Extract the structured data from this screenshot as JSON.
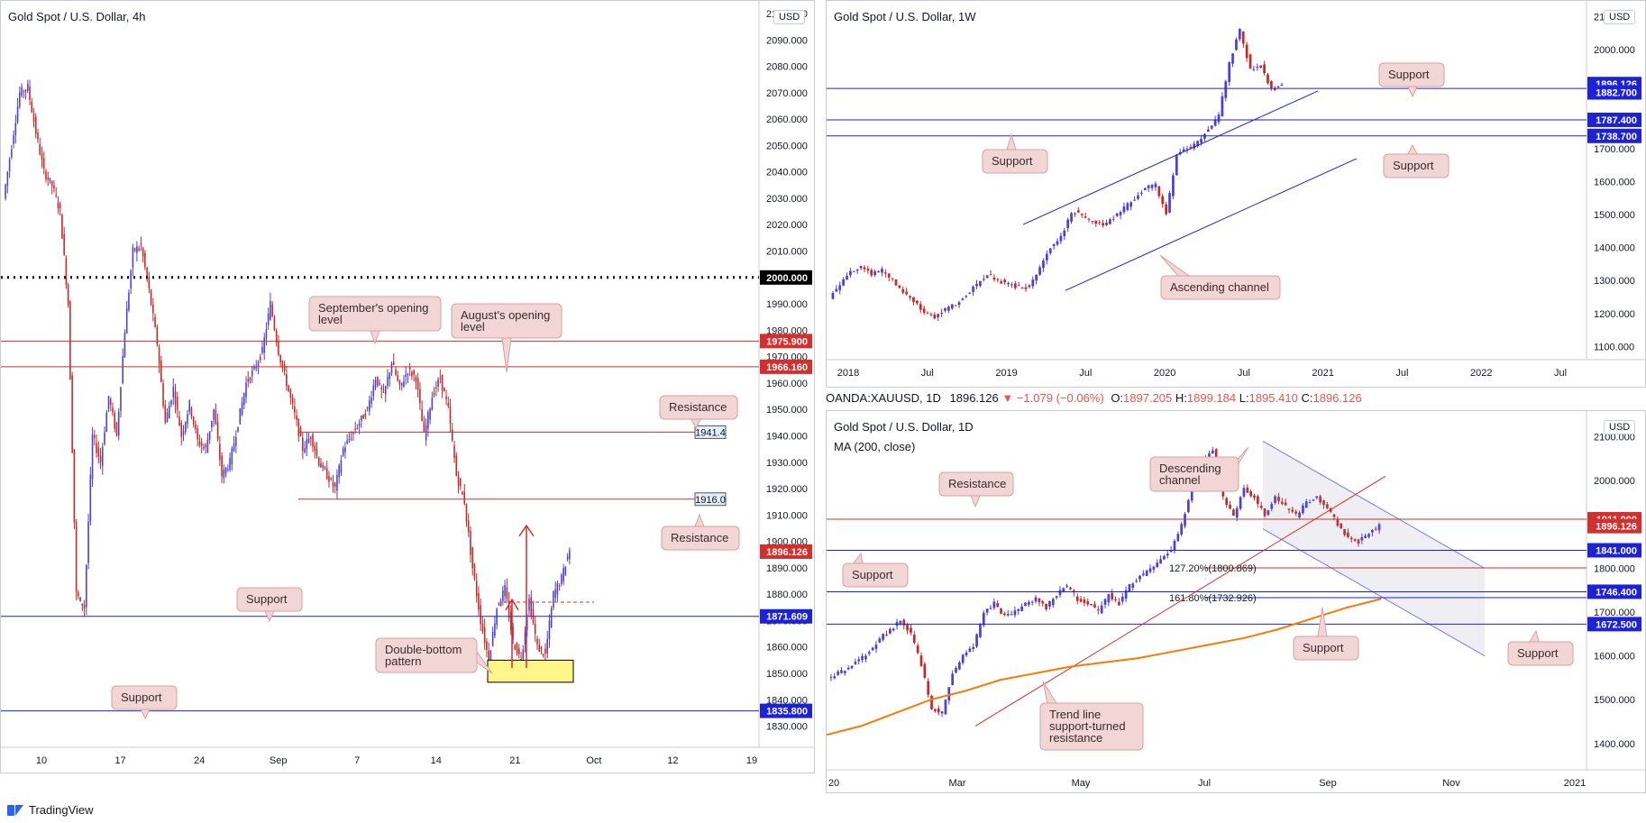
{
  "footer": {
    "brand": "TradingView"
  },
  "ohlc_bar": {
    "symbol": "OANDA:XAUUSD, 1D",
    "last": "1896.126",
    "change": "▼ −1.079 (−0.06%)",
    "o_label": "O:",
    "o": "1897.205",
    "h_label": "H:",
    "h": "1899.184",
    "l_label": "L:",
    "l": "1895.410",
    "c_label": "C:",
    "c": "1896.126"
  },
  "colors": {
    "bull": "#4b3fdc",
    "bear": "#c62828",
    "support": "#1d22d8",
    "resistance": "#d32f2f",
    "ma": "#f57c00",
    "callout_bg": "#f2d6d6",
    "callout_border": "#d9a0a0",
    "highlight": "#fff68a"
  },
  "chart_data": [
    {
      "type": "candlestick",
      "title": "Gold Spot / U.S. Dollar, 4h",
      "currency": "USD",
      "ylim": [
        1822,
        2100
      ],
      "x_ticks": [
        "10",
        "17",
        "24",
        "Sep",
        "7",
        "14",
        "21",
        "Oct",
        "12",
        "19"
      ],
      "y_ticks": [
        1830,
        1840,
        1850,
        1860,
        1870,
        1880,
        1890,
        1900,
        1910,
        1920,
        1930,
        1940,
        1950,
        1960,
        1970,
        1980,
        1990,
        2000,
        2010,
        2020,
        2030,
        2040,
        2050,
        2060,
        2070,
        2080,
        2090,
        2100
      ],
      "path": [
        2030,
        2050,
        2070,
        2072,
        2055,
        2040,
        2035,
        2025,
        1990,
        1880,
        1875,
        1940,
        1930,
        1955,
        1940,
        1980,
        2010,
        2012,
        1995,
        1975,
        1945,
        1958,
        1940,
        1952,
        1938,
        1935,
        1950,
        1925,
        1930,
        1945,
        1960,
        1965,
        1972,
        1990,
        1972,
        1960,
        1948,
        1935,
        1940,
        1930,
        1925,
        1920,
        1935,
        1940,
        1945,
        1950,
        1962,
        1955,
        1968,
        1958,
        1965,
        1962,
        1940,
        1955,
        1962,
        1950,
        1925,
        1915,
        1890,
        1870,
        1855,
        1875,
        1882,
        1862,
        1855,
        1878,
        1860,
        1857,
        1880,
        1886,
        1897
      ],
      "levels": [
        {
          "value": 2000.0,
          "label": "2000.000",
          "kind": "psychological"
        },
        {
          "value": 1975.9,
          "label": "1975.900",
          "kind": "resistance"
        },
        {
          "value": 1966.16,
          "label": "1966.160",
          "kind": "resistance"
        },
        {
          "value": 1941.4,
          "label": "1941.4",
          "kind": "resistance"
        },
        {
          "value": 1916.0,
          "label": "1916.0",
          "kind": "resistance"
        },
        {
          "value": 1871.609,
          "label": "1871.609",
          "kind": "support"
        },
        {
          "value": 1835.8,
          "label": "1835.800",
          "kind": "support"
        }
      ],
      "last_price": {
        "value": 1896.126,
        "label": "1896.126"
      },
      "annotations": [
        "September's opening level",
        "August's opening level",
        "Resistance",
        "Resistance",
        "Support",
        "Support",
        "Double-bottom pattern"
      ]
    },
    {
      "type": "candlestick",
      "title": "Gold Spot / U.S. Dollar, 1W",
      "currency": "USD",
      "ylim": [
        1060,
        2110
      ],
      "x_ticks": [
        "2018",
        "Jul",
        "2019",
        "Jul",
        "2020",
        "Jul",
        "2021",
        "Jul",
        "2022",
        "Jul"
      ],
      "y_ticks": [
        1100,
        1200,
        1300,
        1400,
        1500,
        1600,
        1700,
        1800,
        1900,
        2000,
        2100
      ],
      "path": [
        1250,
        1290,
        1330,
        1340,
        1320,
        1330,
        1300,
        1260,
        1240,
        1200,
        1190,
        1210,
        1230,
        1260,
        1290,
        1320,
        1300,
        1290,
        1280,
        1280,
        1340,
        1400,
        1430,
        1510,
        1500,
        1480,
        1470,
        1490,
        1520,
        1550,
        1580,
        1590,
        1500,
        1680,
        1700,
        1720,
        1760,
        1800,
        1960,
        2060,
        1940,
        1950,
        1880,
        1896
      ],
      "levels": [
        {
          "value": 1896.126,
          "label": "1896.126",
          "kind": "price"
        },
        {
          "value": 1882.7,
          "label": "1882.700",
          "kind": "support"
        },
        {
          "value": 1787.4,
          "label": "1787.400",
          "kind": "support"
        },
        {
          "value": 1738.7,
          "label": "1738.700",
          "kind": "support"
        }
      ],
      "annotations": [
        "Support",
        "Support",
        "Support",
        "Ascending channel"
      ]
    },
    {
      "type": "candlestick",
      "title": "Gold Spot / U.S. Dollar, 1D",
      "indicator": "MA (200, close)",
      "currency": "USD",
      "ylim": [
        1340,
        2130
      ],
      "x_ticks": [
        "20",
        "Mar",
        "May",
        "Jul",
        "Sep",
        "Nov",
        "2021"
      ],
      "y_ticks": [
        1400,
        1500,
        1600,
        1700,
        1800,
        1900,
        2000,
        2100
      ],
      "path": [
        1550,
        1560,
        1570,
        1590,
        1610,
        1640,
        1660,
        1680,
        1650,
        1580,
        1480,
        1470,
        1560,
        1600,
        1620,
        1700,
        1720,
        1690,
        1700,
        1720,
        1730,
        1710,
        1740,
        1760,
        1730,
        1720,
        1700,
        1740,
        1720,
        1760,
        1780,
        1800,
        1820,
        1840,
        1900,
        1980,
        2040,
        2070,
        1960,
        1920,
        1980,
        1960,
        1920,
        1960,
        1940,
        1920,
        1950,
        1960,
        1940,
        1900,
        1870,
        1860,
        1880,
        1896
      ],
      "ma200": [
        1420,
        1440,
        1470,
        1500,
        1520,
        1545,
        1560,
        1575,
        1585,
        1595,
        1610,
        1625,
        1640,
        1660,
        1685,
        1710,
        1730
      ],
      "levels": [
        {
          "value": 1911.9,
          "label": "1911.900",
          "kind": "resistance"
        },
        {
          "value": 1896.126,
          "label": "1896.126",
          "kind": "price"
        },
        {
          "value": 1841.0,
          "label": "1841.000",
          "kind": "support"
        },
        {
          "value": 1746.4,
          "label": "1746.400",
          "kind": "support"
        },
        {
          "value": 1672.5,
          "label": "1672.500",
          "kind": "support"
        }
      ],
      "fib_levels": [
        {
          "value": 1800.869,
          "label": "127.20%(1800.869)"
        },
        {
          "value": 1732.926,
          "label": "161.80%(1732.926)"
        }
      ],
      "annotations": [
        "Resistance",
        "Descending channel",
        "Support",
        "Support",
        "Support",
        "Trend line support-turned resistance"
      ]
    }
  ]
}
